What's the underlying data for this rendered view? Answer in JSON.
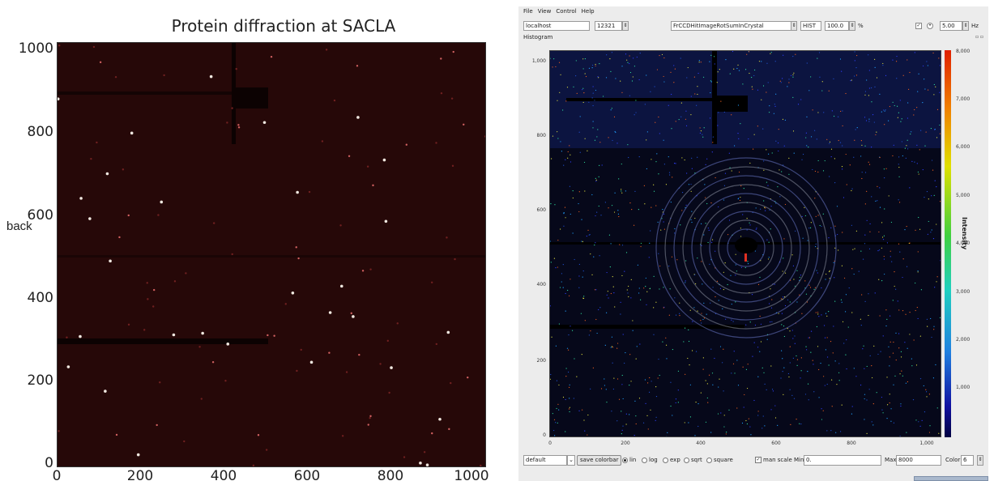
{
  "left_figure": {
    "title": "Protein diffraction at SACLA",
    "side_label": "back",
    "y_ticks": [
      "1000",
      "800",
      "600",
      "400",
      "200",
      "0"
    ],
    "x_ticks": [
      "0",
      "200",
      "400",
      "600",
      "800",
      "1000"
    ]
  },
  "viewer": {
    "menu": [
      "File",
      "View",
      "Control",
      "Help"
    ],
    "toolbar": {
      "host": "localhost",
      "port": "12321",
      "source": "FrCCDHitImageRotSumInCrystal",
      "mode": "HIST",
      "scale_value": "100.0",
      "scale_unit": "%",
      "rate_value": "5.00",
      "rate_unit": "Hz"
    },
    "panel_label": "Histogram",
    "y_ticks": [
      "1,000",
      "800",
      "600",
      "400",
      "200",
      "0"
    ],
    "x_ticks": [
      "0",
      "200",
      "400",
      "600",
      "800",
      "1,000"
    ],
    "colorbar_ticks": [
      "8,000",
      "7,000",
      "6,000",
      "5,000",
      "4,000",
      "3,000",
      "2,000",
      "1,000"
    ],
    "colorbar_label": "Intensity",
    "bottom": {
      "preset": "default",
      "save_colorbar": "save colorbar",
      "scales": [
        "lin",
        "log",
        "exp",
        "sqrt",
        "square"
      ],
      "selected_scale": "lin",
      "man_scale_label": "man scale",
      "min_label": "Min",
      "min_value": "0.",
      "max_label": "Max",
      "max_value": "8000",
      "color_label": "Color",
      "color_value": "6"
    }
  }
}
